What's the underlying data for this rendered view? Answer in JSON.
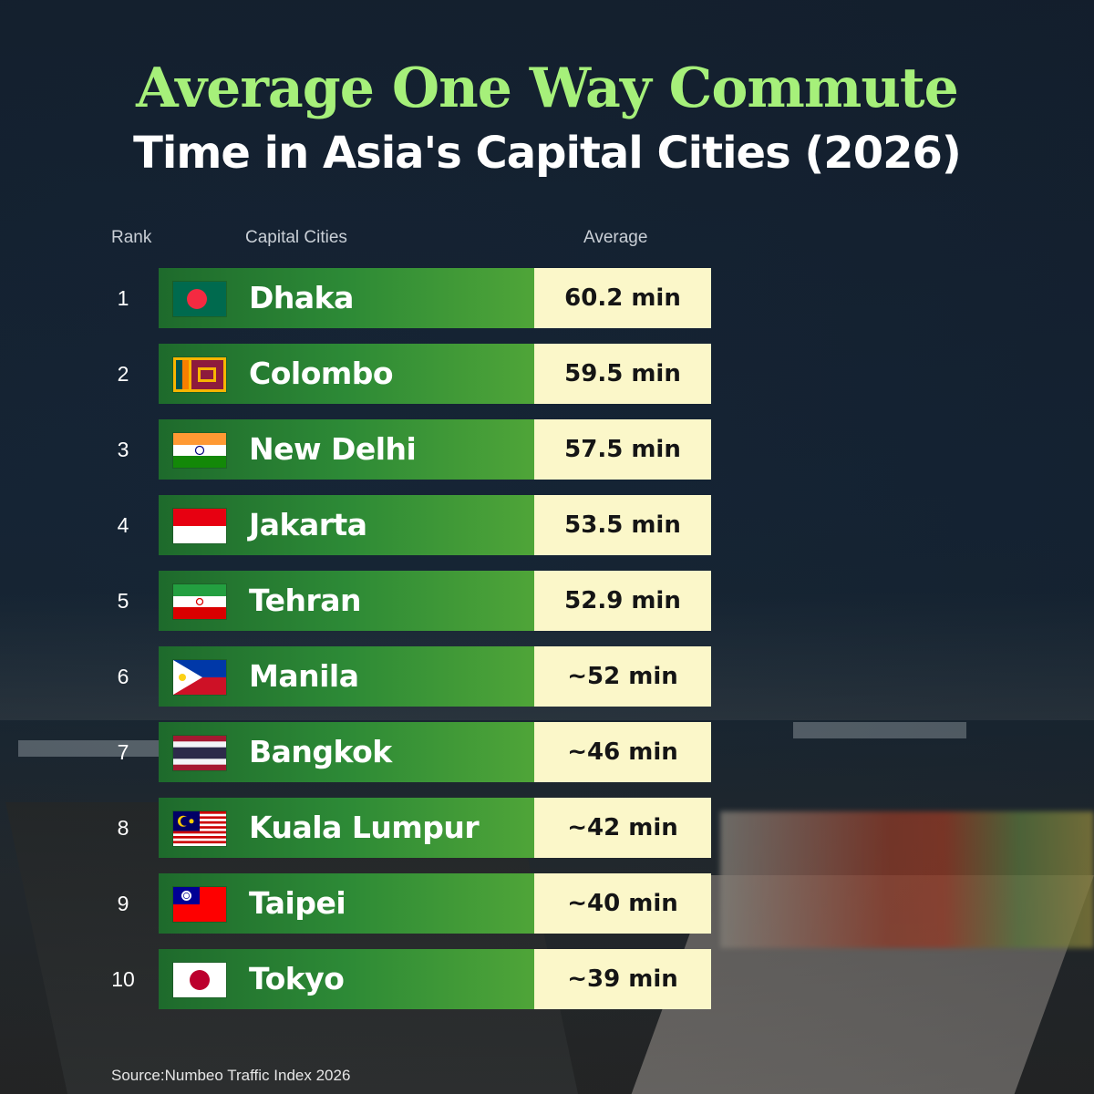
{
  "title_line1": "Average One Way Commute",
  "title_line2": "Time in Asia's Capital Cities (2026)",
  "headers": {
    "rank": "Rank",
    "city": "Capital Cities",
    "average": "Average"
  },
  "source": "Source:Numbeo Traffic Index 2026",
  "colors": {
    "title_accent": "#a6f07a",
    "bar_green_dark": "#1e6a2c",
    "bar_green_light": "#4fa538",
    "value_cell": "#fbf7c9"
  },
  "chart_data": {
    "type": "table",
    "columns": [
      "Rank",
      "Capital Cities",
      "Average"
    ],
    "rows": [
      {
        "rank": "1",
        "city": "Dhaka",
        "flag": "bangladesh-flag-icon",
        "value": 60.2,
        "label": "60.2 min"
      },
      {
        "rank": "2",
        "city": "Colombo",
        "flag": "sri-lanka-flag-icon",
        "value": 59.5,
        "label": "59.5 min"
      },
      {
        "rank": "3",
        "city": "New Delhi",
        "flag": "india-flag-icon",
        "value": 57.5,
        "label": "57.5 min"
      },
      {
        "rank": "4",
        "city": "Jakarta",
        "flag": "indonesia-flag-icon",
        "value": 53.5,
        "label": "53.5 min"
      },
      {
        "rank": "5",
        "city": "Tehran",
        "flag": "iran-flag-icon",
        "value": 52.9,
        "label": "52.9 min"
      },
      {
        "rank": "6",
        "city": "Manila",
        "flag": "philippines-flag-icon",
        "value": 52,
        "label": "~52 min"
      },
      {
        "rank": "7",
        "city": "Bangkok",
        "flag": "thailand-flag-icon",
        "value": 46,
        "label": "~46 min"
      },
      {
        "rank": "8",
        "city": "Kuala Lumpur",
        "flag": "malaysia-flag-icon",
        "value": 42,
        "label": "~42 min"
      },
      {
        "rank": "9",
        "city": "Taipei",
        "flag": "taiwan-flag-icon",
        "value": 40,
        "label": "~40 min"
      },
      {
        "rank": "10",
        "city": "Tokyo",
        "flag": "japan-flag-icon",
        "value": 39,
        "label": "~39 min"
      }
    ]
  }
}
